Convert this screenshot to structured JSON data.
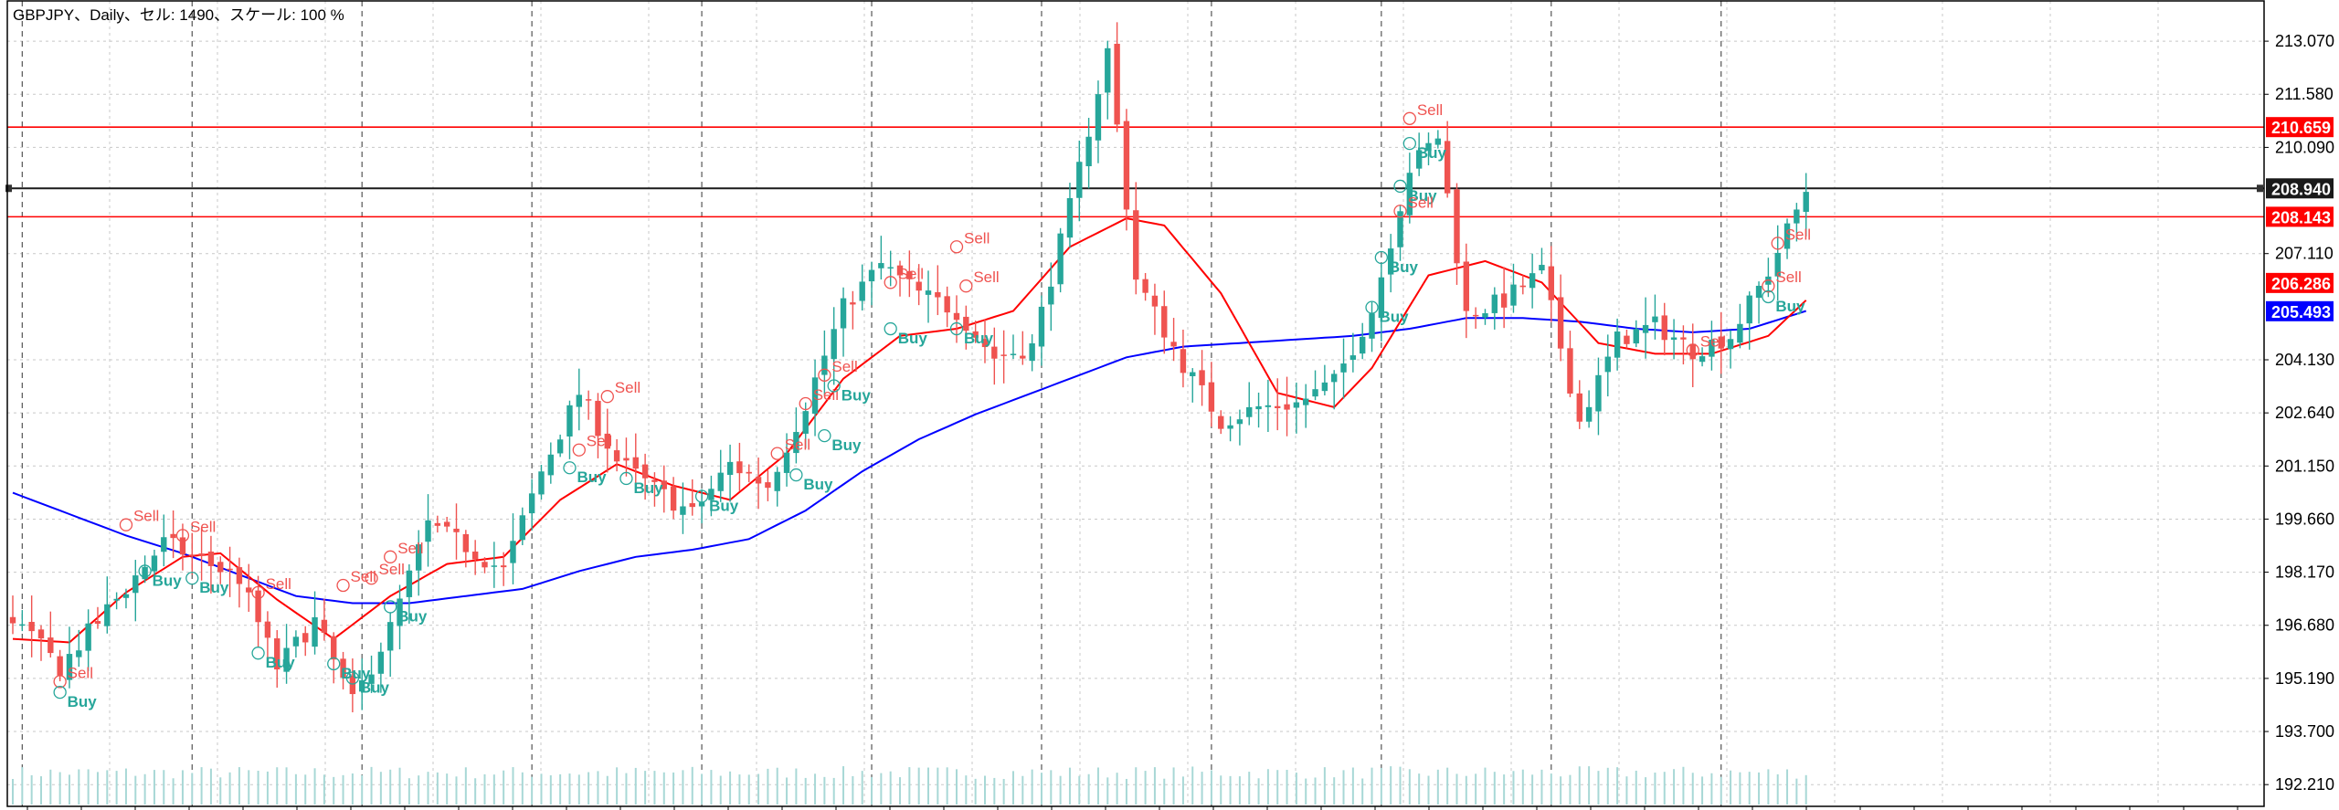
{
  "header": {
    "text": "GBPJPY、Daily、セル: 1490、スケール: 100 %"
  },
  "colors": {
    "bull": "#26a69a",
    "bear": "#ef5350",
    "ma_fast": "#ff0000",
    "ma_slow": "#0000ff",
    "level_red": "#ff0000",
    "level_price": "#1a1a1a",
    "grid": "#c8c8c8",
    "vline": "#555555",
    "volume": "#a8d8d6"
  },
  "chart_data": {
    "type": "candlestick",
    "symbol": "GBPJPY",
    "timeframe": "Daily",
    "ylim": [
      191.6,
      214.2
    ],
    "y_ticks": [
      "213.070",
      "211.580",
      "210.090",
      "207.110",
      "204.130",
      "202.640",
      "201.150",
      "199.660",
      "198.170",
      "196.680",
      "195.190",
      "193.700",
      "192.210"
    ],
    "y_tags": [
      {
        "value": 210.659,
        "label": "210.659",
        "color": "#ff0000"
      },
      {
        "value": 208.94,
        "label": "208.940",
        "color": "#1a1a1a"
      },
      {
        "value": 208.143,
        "label": "208.143",
        "color": "#ff0000"
      },
      {
        "value": 206.286,
        "label": "206.286",
        "color": "#ff0000"
      },
      {
        "value": 205.493,
        "label": "205.493",
        "color": "#0000ff"
      }
    ],
    "horizontal_levels": [
      {
        "value": 210.659,
        "color": "#ff0000"
      },
      {
        "value": 208.94,
        "color": "#1a1a1a"
      },
      {
        "value": 208.143,
        "color": "#ff0000"
      }
    ],
    "candle_count": 191,
    "candle_anchors_close": [
      [
        0,
        196.9
      ],
      [
        5,
        195.5
      ],
      [
        10,
        197.1
      ],
      [
        16,
        199.0
      ],
      [
        20,
        198.5
      ],
      [
        24,
        198.0
      ],
      [
        28,
        195.5
      ],
      [
        32,
        196.8
      ],
      [
        36,
        194.5
      ],
      [
        40,
        196.6
      ],
      [
        44,
        199.5
      ],
      [
        48,
        198.9
      ],
      [
        52,
        198.2
      ],
      [
        56,
        201.0
      ],
      [
        60,
        203.2
      ],
      [
        64,
        201.3
      ],
      [
        68,
        200.5
      ],
      [
        72,
        199.8
      ],
      [
        76,
        201.2
      ],
      [
        80,
        200.6
      ],
      [
        84,
        202.9
      ],
      [
        88,
        205.6
      ],
      [
        92,
        206.8
      ],
      [
        96,
        206.0
      ],
      [
        100,
        205.5
      ],
      [
        104,
        204.2
      ],
      [
        108,
        204.5
      ],
      [
        112,
        208.4
      ],
      [
        116,
        212.8
      ],
      [
        119,
        206.4
      ],
      [
        124,
        204.0
      ],
      [
        128,
        202.4
      ],
      [
        132,
        202.8
      ],
      [
        136,
        202.9
      ],
      [
        140,
        203.5
      ],
      [
        144,
        205.5
      ],
      [
        148,
        209.5
      ],
      [
        151,
        210.4
      ],
      [
        154,
        205.4
      ],
      [
        158,
        205.8
      ],
      [
        162,
        206.6
      ],
      [
        166,
        202.4
      ],
      [
        170,
        204.7
      ],
      [
        174,
        205.1
      ],
      [
        178,
        204.4
      ],
      [
        182,
        204.8
      ],
      [
        186,
        206.6
      ],
      [
        190,
        208.9
      ]
    ],
    "ma_fast_anchors": [
      [
        0,
        196.3
      ],
      [
        6,
        196.2
      ],
      [
        12,
        197.6
      ],
      [
        18,
        198.6
      ],
      [
        22,
        198.7
      ],
      [
        28,
        197.4
      ],
      [
        34,
        196.3
      ],
      [
        40,
        197.5
      ],
      [
        46,
        198.4
      ],
      [
        52,
        198.6
      ],
      [
        58,
        200.2
      ],
      [
        64,
        201.2
      ],
      [
        70,
        200.6
      ],
      [
        76,
        200.2
      ],
      [
        82,
        201.5
      ],
      [
        88,
        203.6
      ],
      [
        94,
        204.8
      ],
      [
        100,
        205.0
      ],
      [
        106,
        205.5
      ],
      [
        112,
        207.3
      ],
      [
        118,
        208.1
      ],
      [
        122,
        207.9
      ],
      [
        128,
        206.0
      ],
      [
        134,
        203.2
      ],
      [
        140,
        202.8
      ],
      [
        144,
        203.9
      ],
      [
        150,
        206.5
      ],
      [
        156,
        206.9
      ],
      [
        162,
        206.3
      ],
      [
        168,
        204.6
      ],
      [
        174,
        204.3
      ],
      [
        180,
        204.3
      ],
      [
        186,
        204.8
      ],
      [
        190,
        205.8
      ]
    ],
    "ma_slow_anchors": [
      [
        0,
        200.4
      ],
      [
        6,
        199.8
      ],
      [
        12,
        199.2
      ],
      [
        18,
        198.7
      ],
      [
        24,
        198.1
      ],
      [
        30,
        197.5
      ],
      [
        36,
        197.3
      ],
      [
        42,
        197.3
      ],
      [
        48,
        197.5
      ],
      [
        54,
        197.7
      ],
      [
        60,
        198.2
      ],
      [
        66,
        198.6
      ],
      [
        72,
        198.8
      ],
      [
        78,
        199.1
      ],
      [
        84,
        199.9
      ],
      [
        90,
        201.0
      ],
      [
        96,
        201.9
      ],
      [
        102,
        202.6
      ],
      [
        108,
        203.2
      ],
      [
        114,
        203.8
      ],
      [
        118,
        204.2
      ],
      [
        124,
        204.5
      ],
      [
        130,
        204.6
      ],
      [
        136,
        204.7
      ],
      [
        142,
        204.8
      ],
      [
        148,
        205.0
      ],
      [
        154,
        205.3
      ],
      [
        160,
        205.3
      ],
      [
        166,
        205.2
      ],
      [
        172,
        205.0
      ],
      [
        178,
        204.9
      ],
      [
        184,
        205.0
      ],
      [
        190,
        205.5
      ]
    ],
    "dashed_vlines_at_candle": [
      1,
      19,
      37,
      55,
      73,
      91,
      109,
      127,
      145,
      163,
      181
    ],
    "signals": [
      {
        "i": 12,
        "kind": "Sell",
        "price": 199.5
      },
      {
        "i": 14,
        "kind": "Buy",
        "price": 198.2
      },
      {
        "i": 18,
        "kind": "Sell",
        "price": 199.2
      },
      {
        "i": 19,
        "kind": "Buy",
        "price": 198.0
      },
      {
        "i": 5,
        "kind": "Sell",
        "price": 195.1
      },
      {
        "i": 5,
        "kind": "Buy",
        "price": 194.8
      },
      {
        "i": 26,
        "kind": "Sell",
        "price": 197.6
      },
      {
        "i": 26,
        "kind": "Buy",
        "price": 195.9
      },
      {
        "i": 35,
        "kind": "Sell",
        "price": 197.8
      },
      {
        "i": 34,
        "kind": "Buy",
        "price": 195.6
      },
      {
        "i": 36,
        "kind": "Buy",
        "price": 195.2
      },
      {
        "i": 38,
        "kind": "Sell",
        "price": 198.0
      },
      {
        "i": 40,
        "kind": "Sell",
        "price": 198.6
      },
      {
        "i": 40,
        "kind": "Buy",
        "price": 197.2
      },
      {
        "i": 60,
        "kind": "Sell",
        "price": 201.6
      },
      {
        "i": 63,
        "kind": "Sell",
        "price": 203.1
      },
      {
        "i": 59,
        "kind": "Buy",
        "price": 201.1
      },
      {
        "i": 65,
        "kind": "Buy",
        "price": 200.8
      },
      {
        "i": 73,
        "kind": "Buy",
        "price": 200.3
      },
      {
        "i": 81,
        "kind": "Sell",
        "price": 201.5
      },
      {
        "i": 83,
        "kind": "Buy",
        "price": 200.9
      },
      {
        "i": 84,
        "kind": "Sell",
        "price": 202.9
      },
      {
        "i": 86,
        "kind": "Buy",
        "price": 202.0
      },
      {
        "i": 86,
        "kind": "Sell",
        "price": 203.7
      },
      {
        "i": 87,
        "kind": "Buy",
        "price": 203.4
      },
      {
        "i": 93,
        "kind": "Sell",
        "price": 206.3
      },
      {
        "i": 93,
        "kind": "Buy",
        "price": 205.0
      },
      {
        "i": 100,
        "kind": "Sell",
        "price": 207.3
      },
      {
        "i": 101,
        "kind": "Sell",
        "price": 206.2
      },
      {
        "i": 100,
        "kind": "Buy",
        "price": 205.0
      },
      {
        "i": 148,
        "kind": "Sell",
        "price": 210.9
      },
      {
        "i": 148,
        "kind": "Buy",
        "price": 210.2
      },
      {
        "i": 147,
        "kind": "Buy",
        "price": 209.0
      },
      {
        "i": 147,
        "kind": "Sell",
        "price": 208.3
      },
      {
        "i": 145,
        "kind": "Buy",
        "price": 207.0
      },
      {
        "i": 144,
        "kind": "Buy",
        "price": 205.6
      },
      {
        "i": 178,
        "kind": "Sell",
        "price": 204.4
      },
      {
        "i": 187,
        "kind": "Sell",
        "price": 207.4
      },
      {
        "i": 186,
        "kind": "Sell",
        "price": 206.2
      },
      {
        "i": 186,
        "kind": "Buy",
        "price": 205.9
      }
    ]
  }
}
